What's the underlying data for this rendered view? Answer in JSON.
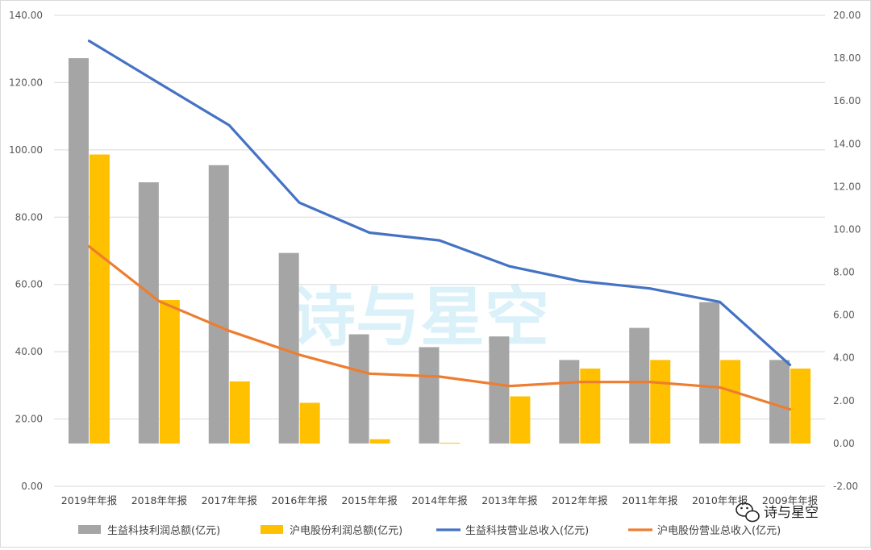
{
  "chart_data": {
    "type": "bar+line",
    "categories": [
      "2019年年报",
      "2018年年报",
      "2017年年报",
      "2016年年报",
      "2015年年报",
      "2014年年报",
      "2013年年报",
      "2012年年报",
      "2011年年报",
      "2010年年报",
      "2009年年报"
    ],
    "left_axis": {
      "min": 0,
      "max": 140,
      "step": 20,
      "format": 2
    },
    "right_axis": {
      "min": -2,
      "max": 20,
      "step": 2,
      "format": 2
    },
    "bar_series": [
      {
        "name": "生益科技利润总额(亿元)",
        "color": "#a5a5a5",
        "values": [
          18.0,
          12.2,
          13.0,
          8.9,
          5.1,
          4.5,
          5.0,
          3.9,
          5.4,
          6.6,
          3.9
        ]
      },
      {
        "name": "沪电股份利润总额(亿元)",
        "color": "#ffc000",
        "values": [
          13.5,
          6.7,
          2.9,
          1.9,
          0.2,
          0.03,
          2.2,
          3.5,
          3.9,
          3.9,
          3.5
        ]
      }
    ],
    "line_series": [
      {
        "name": "生益科技营业总收入(亿元)",
        "color": "#4472c4",
        "values": [
          132.4,
          119.8,
          107.3,
          84.3,
          75.4,
          73.1,
          65.4,
          61.0,
          58.8,
          54.8,
          36.1
        ]
      },
      {
        "name": "沪电股份营业总收入(亿元)",
        "color": "#ed7d31",
        "values": [
          71.3,
          55.0,
          46.2,
          39.1,
          33.5,
          32.6,
          29.8,
          31.0,
          31.0,
          29.4,
          22.9
        ]
      }
    ],
    "legend_position": "bottom",
    "gridlines": true,
    "watermark": "诗与星空"
  },
  "brand": {
    "text": "诗与星空",
    "icon": "wechat-icon"
  }
}
